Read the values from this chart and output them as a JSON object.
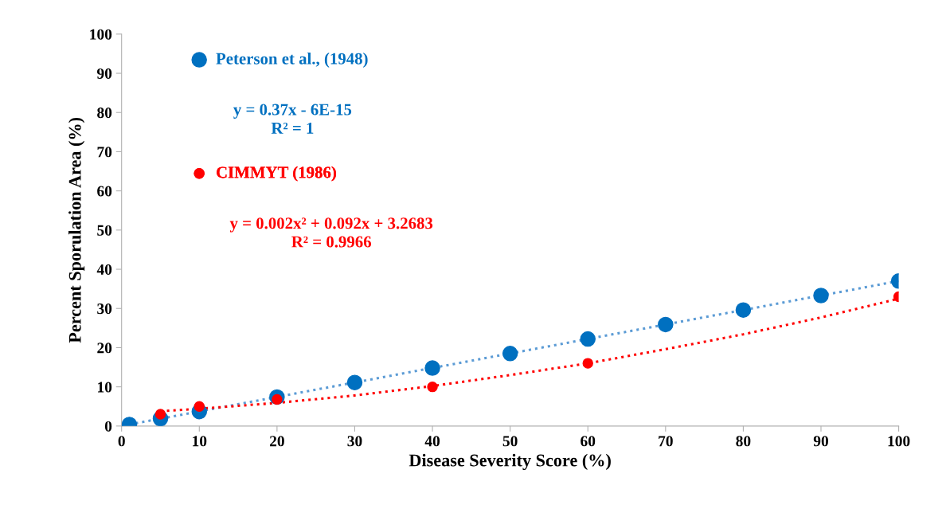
{
  "chart_data": {
    "type": "scatter",
    "xlabel": "Disease Severity Score (%)",
    "ylabel": "Percent Sporulation Area (%)",
    "xlim": [
      0,
      100
    ],
    "ylim": [
      0,
      100
    ],
    "xticks": [
      0,
      10,
      20,
      30,
      40,
      50,
      60,
      70,
      80,
      90,
      100
    ],
    "yticks": [
      0,
      10,
      20,
      30,
      40,
      50,
      60,
      70,
      80,
      90,
      100
    ],
    "grid": false,
    "legend": "top left",
    "marker": "circle",
    "series": [
      {
        "name": "Peterson et al., (1948)",
        "color": "#0070c0",
        "x": [
          1,
          5,
          10,
          20,
          30,
          40,
          50,
          60,
          70,
          80,
          90,
          100
        ],
        "values": [
          0.4,
          1.9,
          3.7,
          7.4,
          11.1,
          14.8,
          18.5,
          22.2,
          25.9,
          29.6,
          33.3,
          37
        ]
      },
      {
        "name": "CIMMYT (1986)",
        "color": "#ff0000",
        "x": [
          5,
          10,
          20,
          40,
          60,
          100
        ],
        "values": [
          3,
          5,
          6.8,
          10,
          16,
          33
        ]
      },
      {
        "type": "line",
        "line_style": "dotted",
        "marker": "none",
        "color": "#5b9bd5",
        "x": [
          1,
          100
        ],
        "values": [
          0.4,
          37
        ]
      },
      {
        "type": "line",
        "line_style": "dotted",
        "marker": "none",
        "color": "#ff0000",
        "x": [
          5,
          10,
          20,
          30,
          40,
          50,
          60,
          70,
          80,
          90,
          100
        ],
        "values": [
          3.8,
          4.4,
          5.9,
          7.8,
          10.2,
          13.0,
          16.0,
          19.6,
          23.4,
          27.7,
          32.5
        ]
      }
    ],
    "annotations": [
      "y = 0.37x - 6E-15\nR² = 1",
      "y = 0.002x² + 0.092x + 3.2683\nR² = 0.9966"
    ]
  }
}
